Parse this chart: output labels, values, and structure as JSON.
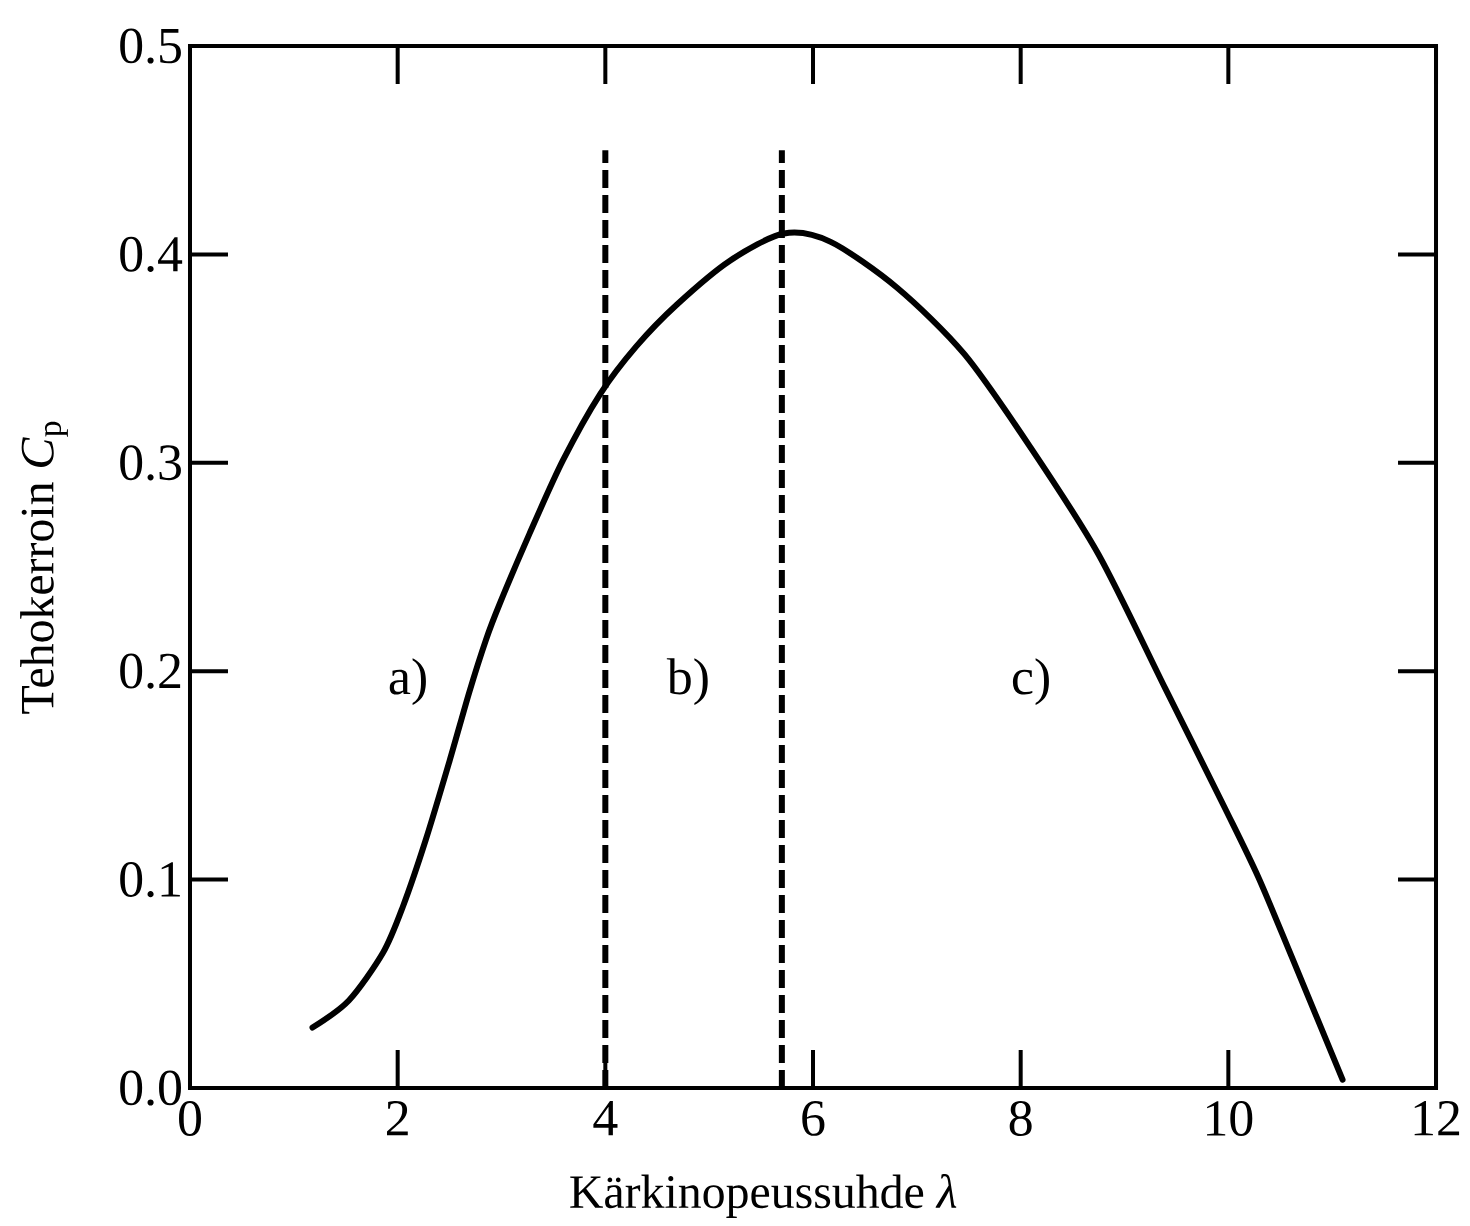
{
  "chart_data": {
    "type": "line",
    "xlabel": "Kärkinopeussuhde *λ*",
    "ylabel": "Tehokerroin *C*$_{p}$",
    "x": [
      1.18,
      1.53,
      1.86,
      2.05,
      2.27,
      2.5,
      2.69,
      2.85,
      2.98,
      3.27,
      3.59,
      3.95,
      4.3,
      4.69,
      5.2,
      5.72,
      6.17,
      6.81,
      7.46,
      8.1,
      8.75,
      9.39,
      9.97,
      10.29,
      10.61,
      11.1
    ],
    "series": [
      {
        "color": "#000000",
        "values": [
          0.029,
          0.042,
          0.065,
          0.087,
          0.119,
          0.157,
          0.19,
          0.215,
          0.232,
          0.266,
          0.301,
          0.333,
          0.356,
          0.376,
          0.397,
          0.41,
          0.406,
          0.384,
          0.352,
          0.307,
          0.256,
          0.192,
          0.134,
          0.101,
          0.063,
          0.004
        ]
      }
    ],
    "xlim": [
      0,
      12
    ],
    "xticks": [
      0,
      2,
      4,
      6,
      8,
      10,
      12
    ],
    "ylim": [
      0,
      0.5
    ],
    "yticks": [
      {
        "value": 0,
        "label": "0.0"
      },
      0.1,
      0.2,
      0.3,
      0.4,
      0.5
    ],
    "ref_lines": [
      {
        "axis": "x",
        "value": 4,
        "color": "#000000",
        "line_style": "dashed"
      },
      {
        "axis": "x",
        "value": 5.7,
        "color": "#000000",
        "line_style": "dashed"
      }
    ],
    "annotations": [
      "a)",
      "b)",
      "c)"
    ],
    "line_style": "solid"
  }
}
